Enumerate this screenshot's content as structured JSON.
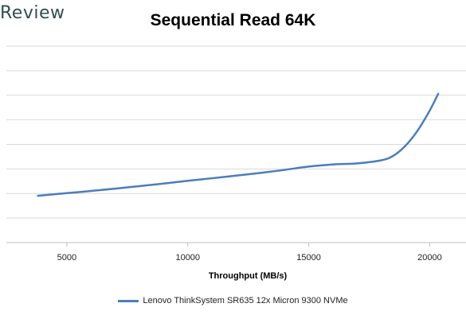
{
  "logo": {
    "text": "Review"
  },
  "chart_data": {
    "type": "line",
    "title": "Sequential Read 64K",
    "xlabel": "Throughput (MB/s)",
    "ylabel": "",
    "xlim": [
      2500,
      21500
    ],
    "xticks": [
      5000,
      10000,
      15000,
      20000
    ],
    "grid": true,
    "legend_position": "bottom",
    "colors": {
      "series": "#4a7ebb",
      "grid": "#d9d9d9",
      "axis": "#bfbfbf"
    },
    "series": [
      {
        "name": "Lenovo ThinkSystem SR635 12x Micron 9300 NVMe",
        "points": [
          [
            3800,
            0.6
          ],
          [
            5000,
            0.92
          ],
          [
            6000,
            1.18
          ],
          [
            7000,
            1.46
          ],
          [
            8000,
            1.76
          ],
          [
            9000,
            2.06
          ],
          [
            10000,
            2.4
          ],
          [
            11000,
            2.7
          ],
          [
            12000,
            3.02
          ],
          [
            13000,
            3.34
          ],
          [
            14000,
            3.7
          ],
          [
            15000,
            4.1
          ],
          [
            16000,
            4.35
          ],
          [
            17000,
            4.48
          ],
          [
            18000,
            4.85
          ],
          [
            18500,
            5.4
          ],
          [
            19000,
            6.6
          ],
          [
            19500,
            8.4
          ],
          [
            20000,
            10.8
          ],
          [
            20350,
            12.8
          ]
        ]
      }
    ],
    "ylim": [
      -5,
      18.5
    ]
  }
}
